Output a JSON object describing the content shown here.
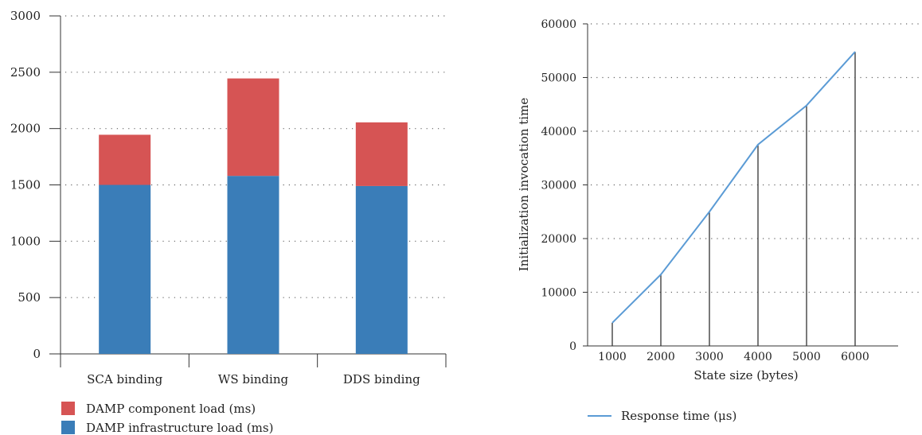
{
  "chart_data": [
    {
      "type": "bar",
      "stacked": true,
      "categories": [
        "SCA binding",
        "WS binding",
        "DDS binding"
      ],
      "series": [
        {
          "name": "DAMP infrastructure load (ms)",
          "values": [
            1500,
            1580,
            1490
          ],
          "color": "#3a7db8"
        },
        {
          "name": "DAMP component load (ms)",
          "values": [
            445,
            865,
            565
          ],
          "color": "#d65454"
        }
      ],
      "ylim": [
        0,
        3000
      ],
      "yticks": [
        0,
        500,
        1000,
        1500,
        2000,
        2500,
        3000
      ],
      "title": "",
      "xlabel": "",
      "ylabel": "",
      "grid": true,
      "legend": "bottom-left"
    },
    {
      "type": "line",
      "x": [
        1000,
        2000,
        3000,
        4000,
        5000,
        6000
      ],
      "series": [
        {
          "name": "Response time (μs)",
          "values": [
            4300,
            13300,
            25000,
            37500,
            44800,
            54800
          ],
          "color": "#5b9bd5"
        }
      ],
      "drop_lines": true,
      "xlim": [
        0,
        7000
      ],
      "ylim": [
        0,
        60000
      ],
      "xticks": [
        1000,
        2000,
        3000,
        4000,
        5000,
        6000
      ],
      "yticks": [
        0,
        10000,
        20000,
        30000,
        40000,
        50000,
        60000
      ],
      "title": "",
      "xlabel": "State size (bytes)",
      "ylabel": "Initialization invocation time",
      "grid": true,
      "legend": "bottom-left"
    }
  ]
}
